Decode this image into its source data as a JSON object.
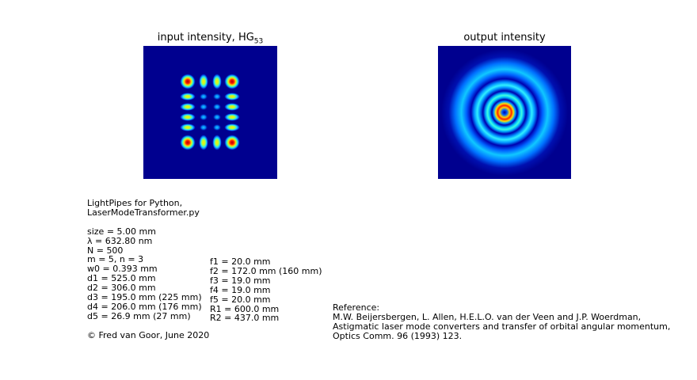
{
  "figure": {
    "panels": [
      {
        "title_main": "input intensity, HG",
        "title_sub": "53"
      },
      {
        "title_main": "output intensity",
        "title_sub": ""
      }
    ],
    "colormap": "jet",
    "background_color": "#00008f",
    "input_mode": {
      "m": 5,
      "n": 3
    }
  },
  "params_left": [
    "LightPipes for Python,",
    "LaserModeTransformer.py",
    "",
    "size = 5.00 mm",
    "λ = 632.80 nm",
    "N = 500",
    "m = 5, n = 3",
    "w0 = 0.393 mm",
    "d1 = 525.0 mm",
    "d2 = 306.0 mm",
    "d3 = 195.0 mm (225 mm)",
    "d4 = 206.0 mm (176 mm)",
    "d5 = 26.9 mm (27 mm)",
    "",
    "© Fred van Goor, June 2020"
  ],
  "params_right": [
    "f1 = 20.0 mm",
    "f2 = 172.0 mm (160 mm)",
    "f3 = 19.0 mm",
    "f4 = 19.0 mm",
    "f5 = 20.0 mm",
    "R1 = 600.0 mm",
    "R2 = 437.0 mm"
  ],
  "reference": [
    "Reference:",
    "M.W. Beijersbergen, L. Allen, H.E.L.O. van der Veen and J.P. Woerdman,",
    "Astigmatic laser mode converters and transfer of orbital angular momentum,",
    "Optics Comm. 96 (1993) 123."
  ]
}
